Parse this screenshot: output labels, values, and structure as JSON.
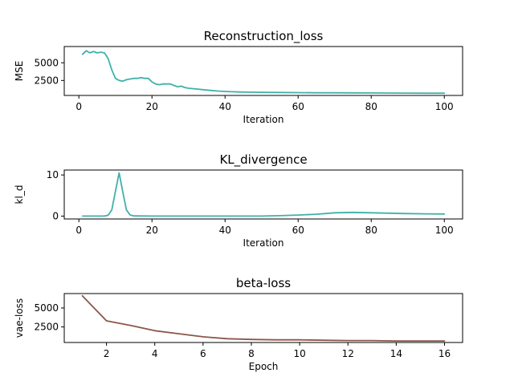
{
  "chart_data": [
    {
      "type": "line",
      "title": "Reconstruction_loss",
      "xlabel": "Iteration",
      "ylabel": "MSE",
      "xlim": [
        -4,
        105
      ],
      "ylim": [
        380,
        7300
      ],
      "xticks": [
        0,
        20,
        40,
        60,
        80,
        100
      ],
      "yticks": [
        2500,
        5000
      ],
      "series": [
        {
          "color": "#3fb1a8",
          "x": [
            1,
            2,
            3,
            4,
            5,
            6,
            7,
            8,
            9,
            10,
            11,
            12,
            13,
            14,
            15,
            16,
            17,
            18,
            19,
            20,
            21,
            22,
            23,
            24,
            25,
            26,
            27,
            28,
            29,
            30,
            32,
            34,
            36,
            38,
            40,
            42,
            44,
            46,
            48,
            50,
            55,
            60,
            65,
            70,
            75,
            80,
            85,
            90,
            95,
            100
          ],
          "y": [
            6200,
            6700,
            6400,
            6600,
            6400,
            6500,
            6400,
            5600,
            4000,
            2800,
            2500,
            2400,
            2600,
            2700,
            2800,
            2800,
            2900,
            2800,
            2800,
            2300,
            2000,
            1900,
            2000,
            2000,
            2000,
            1800,
            1600,
            1700,
            1500,
            1400,
            1300,
            1200,
            1100,
            1000,
            950,
            900,
            870,
            850,
            830,
            820,
            800,
            780,
            760,
            750,
            740,
            730,
            720,
            710,
            700,
            700
          ]
        }
      ]
    },
    {
      "type": "line",
      "title": "KL_divergence",
      "xlabel": "Iteration",
      "ylabel": "kl_d",
      "xlim": [
        -4,
        105
      ],
      "ylim": [
        -0.7,
        11.2
      ],
      "xticks": [
        0,
        20,
        40,
        60,
        80,
        100
      ],
      "yticks": [
        0,
        10
      ],
      "series": [
        {
          "color": "#3fb1a8",
          "x": [
            1,
            5,
            7,
            8,
            9,
            10,
            11,
            12,
            13,
            14,
            15,
            20,
            30,
            40,
            50,
            55,
            60,
            65,
            70,
            75,
            80,
            85,
            90,
            95,
            100
          ],
          "y": [
            0,
            0,
            0,
            0.2,
            1.5,
            6,
            10.5,
            6,
            1.5,
            0.3,
            0.05,
            0,
            0,
            0,
            0,
            0.1,
            0.25,
            0.45,
            0.8,
            0.9,
            0.8,
            0.7,
            0.6,
            0.55,
            0.5
          ]
        }
      ]
    },
    {
      "type": "line",
      "title": "beta-loss",
      "xlabel": "Epoch",
      "ylabel": "vae-loss",
      "xlim": [
        0.25,
        16.75
      ],
      "ylim": [
        450,
        6900
      ],
      "xticks": [
        2,
        4,
        6,
        8,
        10,
        12,
        14,
        16
      ],
      "yticks": [
        2500,
        5000
      ],
      "series": [
        {
          "color": "#8c564b",
          "x": [
            1,
            2,
            3,
            4,
            5,
            6,
            7,
            8,
            9,
            10,
            11,
            12,
            13,
            14,
            15,
            16
          ],
          "y": [
            6600,
            3300,
            2700,
            2000,
            1600,
            1200,
            950,
            850,
            800,
            800,
            750,
            700,
            700,
            650,
            650,
            650
          ]
        }
      ]
    }
  ]
}
